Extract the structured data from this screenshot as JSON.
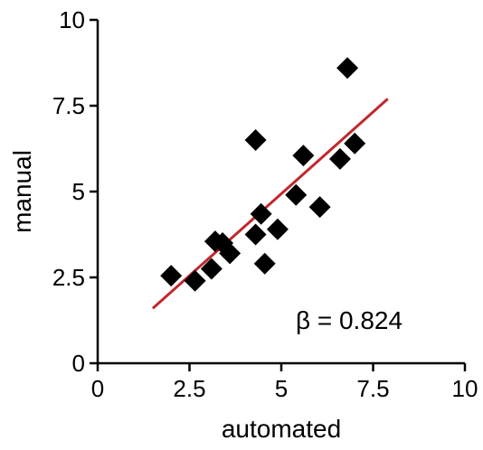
{
  "chart_data": {
    "type": "scatter",
    "title": "",
    "xlabel": "automated",
    "ylabel": "manual",
    "xlim": [
      0,
      10
    ],
    "ylim": [
      0,
      10
    ],
    "xticks": [
      0,
      2.5,
      5,
      7.5,
      10
    ],
    "xtick_labels": [
      "0",
      "2.5",
      "5",
      "7.5",
      "10"
    ],
    "yticks": [
      0,
      2.5,
      5,
      7.5,
      10
    ],
    "ytick_labels": [
      "0",
      "2.5",
      "5",
      "7.5",
      "10"
    ],
    "grid": false,
    "marker": "diamond",
    "marker_color": "#000000",
    "series": [
      {
        "x": [
          2.0,
          2.65,
          3.1,
          3.2,
          3.4,
          3.6,
          4.3,
          4.3,
          4.45,
          4.55,
          4.9,
          5.4,
          5.6,
          6.05,
          6.6,
          6.8,
          7.0
        ],
        "y": [
          2.55,
          2.4,
          2.75,
          3.55,
          3.5,
          3.2,
          3.75,
          6.5,
          4.35,
          2.9,
          3.9,
          4.9,
          6.05,
          4.55,
          5.95,
          8.6,
          6.4
        ]
      }
    ],
    "fit_line": {
      "color": "#c0282d",
      "x": [
        1.5,
        7.9
      ],
      "y": [
        1.6,
        7.7
      ]
    },
    "annotation": "β = 0.824"
  }
}
